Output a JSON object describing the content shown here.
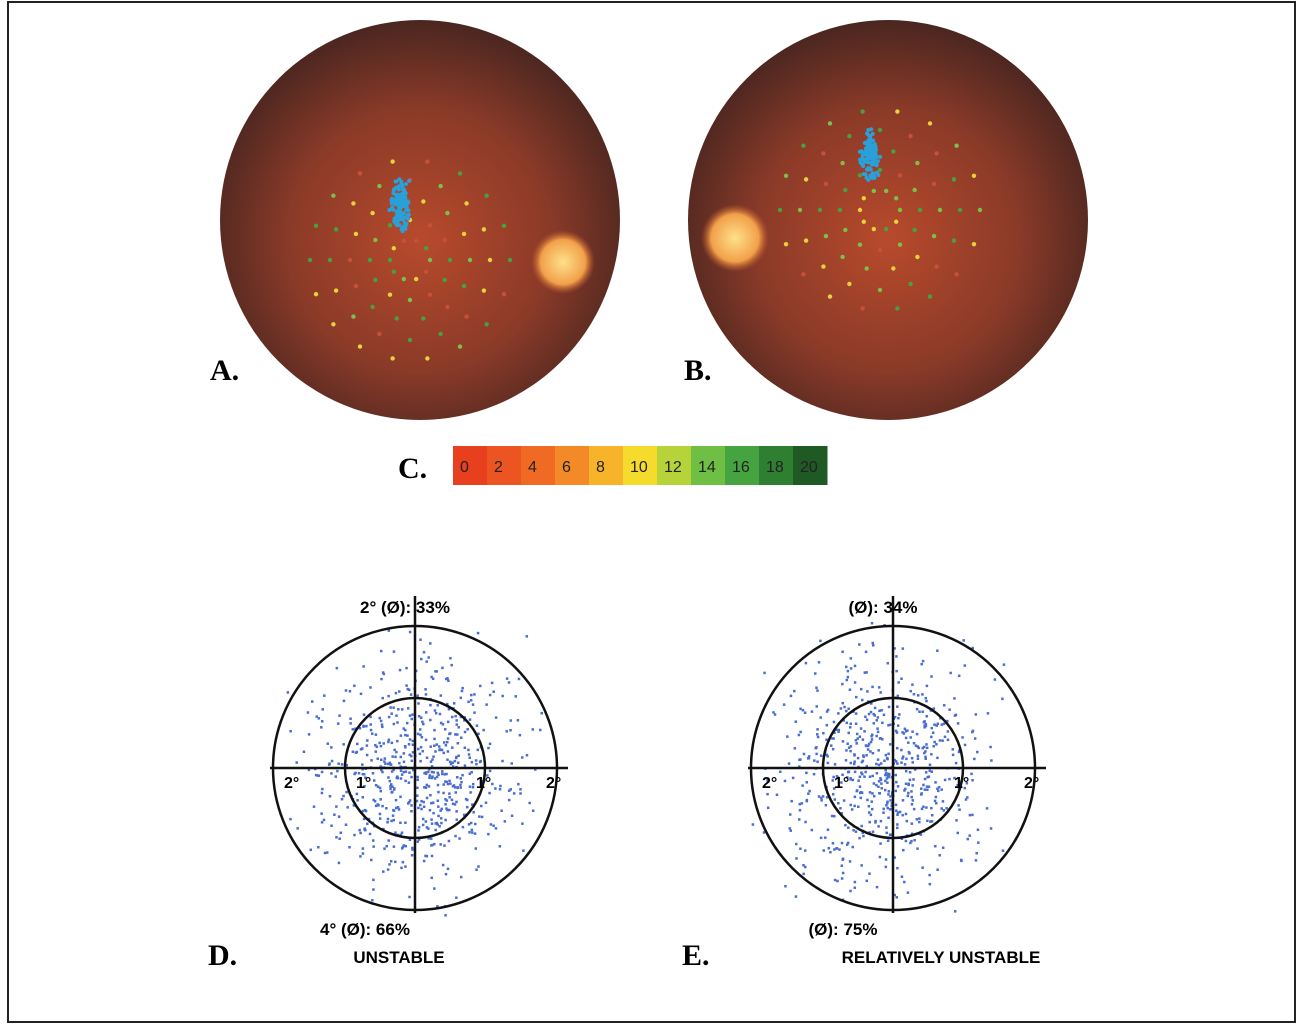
{
  "panels": {
    "a": {
      "label": "A."
    },
    "b": {
      "label": "B."
    },
    "c": {
      "label": "C.",
      "scale": {
        "ticks": [
          0,
          2,
          4,
          6,
          8,
          10,
          12,
          14,
          16,
          18,
          20
        ],
        "colors": [
          "#e8401f",
          "#ec5522",
          "#f06a24",
          "#f38a27",
          "#f7b42a",
          "#f5dc2c",
          "#b6d33a",
          "#6fbf45",
          "#45a340",
          "#2f7f32",
          "#1f5a25"
        ]
      }
    },
    "d": {
      "label": "D.",
      "top": "2° (Ø): 33%",
      "bottom": "4° (Ø): 66%",
      "caption": "UNSTABLE",
      "axis_labels": [
        "2°",
        "1°",
        "1°",
        "2°"
      ]
    },
    "e": {
      "label": "E.",
      "top": "(Ø): 34%",
      "bottom": "(Ø): 75%",
      "caption": "RELATIVELY UNSTABLE",
      "axis_labels": [
        "2°",
        "1°",
        "1°",
        "2°"
      ]
    }
  }
}
